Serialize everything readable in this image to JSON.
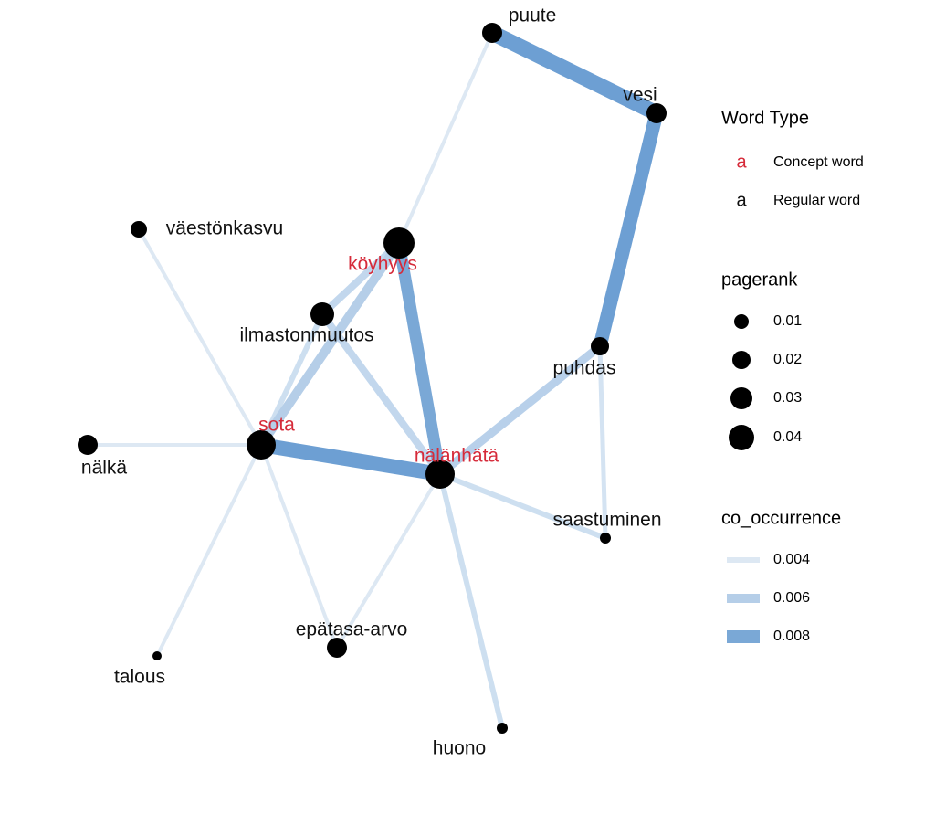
{
  "nodes": [
    {
      "label": "puute",
      "concept": false
    },
    {
      "label": "vesi",
      "concept": false
    },
    {
      "label": "väestönkasvu",
      "concept": false
    },
    {
      "label": "köyhyys",
      "concept": true
    },
    {
      "label": "ilmastonmuutos",
      "concept": false
    },
    {
      "label": "puhdas",
      "concept": false
    },
    {
      "label": "sota",
      "concept": true
    },
    {
      "label": "nälkä",
      "concept": false
    },
    {
      "label": "nälänhätä",
      "concept": true
    },
    {
      "label": "saastuminen",
      "concept": false
    },
    {
      "label": "epätasa-arvo",
      "concept": false
    },
    {
      "label": "talous",
      "concept": false
    },
    {
      "label": "huono",
      "concept": false
    }
  ],
  "legend": {
    "word_type": {
      "title": "Word Type",
      "symbol": "a",
      "items": [
        {
          "label": "Concept word",
          "concept": true
        },
        {
          "label": "Regular word",
          "concept": false
        }
      ]
    },
    "pagerank": {
      "title": "pagerank",
      "items": [
        "0.01",
        "0.02",
        "0.03",
        "0.04"
      ]
    },
    "co_occurrence": {
      "title": "co_occurrence",
      "items": [
        "0.004",
        "0.006",
        "0.008"
      ]
    }
  }
}
